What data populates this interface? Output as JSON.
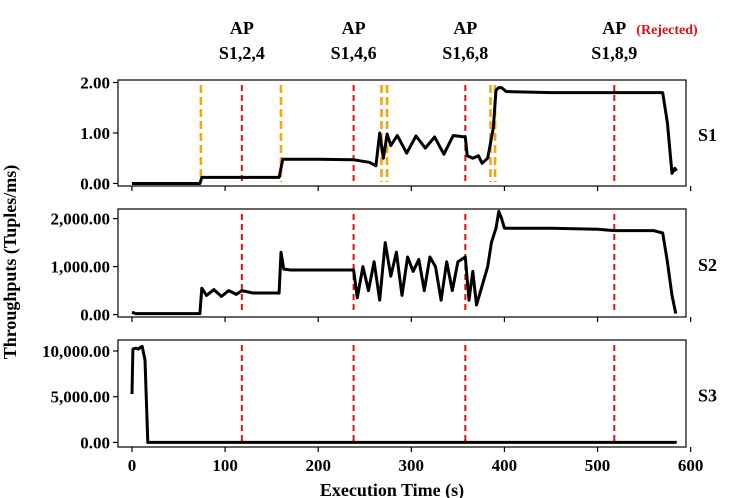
{
  "chart_data": {
    "type": "line",
    "title": "",
    "xlabel": "Execution Time (s)",
    "ylabel": "Throughputs (Tuples/ms)",
    "xlim": [
      -15,
      595
    ],
    "xticks": [
      0,
      100,
      200,
      300,
      400,
      500,
      600
    ],
    "colors": {
      "line": "#000000",
      "adaptation": "#dd1111",
      "split": "#f5a511",
      "rejected": "#dd1111"
    },
    "annotations": [
      {
        "top": "AP",
        "bottom": "S1,2,4",
        "x": 118,
        "rejected": false
      },
      {
        "top": "AP",
        "bottom": "S1,4,6",
        "x": 238,
        "rejected": false
      },
      {
        "top": "AP",
        "bottom": "S1,6,8",
        "x": 358,
        "rejected": false
      },
      {
        "top": "AP",
        "bottom": "S1,8,9",
        "x": 518,
        "rejected": true,
        "rejected_label": "(Rejected)"
      }
    ],
    "panels": [
      {
        "name": "S1",
        "ylim": [
          -0.05,
          2.05
        ],
        "yticks": [
          0,
          1,
          2
        ],
        "ytick_labels": [
          "0.00",
          "1.00",
          "2.00"
        ],
        "red_lines": [
          118,
          238,
          358,
          518
        ],
        "orange_lines": [
          74,
          160,
          268,
          274,
          385,
          390
        ],
        "x": [
          0,
          73,
          75,
          118,
          158,
          162,
          200,
          238,
          255,
          262,
          266,
          270,
          274,
          278,
          285,
          295,
          305,
          315,
          325,
          335,
          345,
          358,
          360,
          366,
          372,
          376,
          382,
          388,
          391,
          394,
          397,
          402,
          450,
          500,
          518,
          570,
          575,
          580,
          583,
          585
        ],
        "y": [
          0.0,
          0.0,
          0.12,
          0.12,
          0.12,
          0.48,
          0.48,
          0.47,
          0.42,
          0.35,
          1.0,
          0.5,
          0.98,
          0.75,
          0.95,
          0.6,
          0.94,
          0.7,
          0.92,
          0.58,
          0.95,
          0.92,
          0.55,
          0.5,
          0.55,
          0.4,
          0.5,
          1.1,
          1.85,
          1.9,
          1.9,
          1.82,
          1.8,
          1.8,
          1.8,
          1.8,
          1.2,
          0.2,
          0.3,
          0.25
        ]
      },
      {
        "name": "S2",
        "ylim": [
          -50,
          2200
        ],
        "yticks": [
          0,
          1000,
          2000
        ],
        "ytick_labels": [
          "0.00",
          "1,000.00",
          "2,000.00"
        ],
        "red_lines": [
          118,
          238,
          358,
          518
        ],
        "orange_lines": [],
        "x": [
          0,
          4,
          73,
          75,
          80,
          88,
          96,
          104,
          112,
          118,
          130,
          158,
          160,
          163,
          170,
          200,
          238,
          242,
          248,
          254,
          260,
          266,
          272,
          278,
          284,
          290,
          296,
          302,
          308,
          314,
          320,
          326,
          332,
          338,
          344,
          350,
          358,
          362,
          366,
          370,
          376,
          382,
          386,
          391,
          394,
          397,
          400,
          450,
          500,
          518,
          560,
          570,
          575,
          580,
          584
        ],
        "y": [
          50,
          20,
          20,
          550,
          400,
          520,
          380,
          500,
          420,
          500,
          450,
          450,
          1300,
          950,
          930,
          930,
          930,
          350,
          1000,
          500,
          1100,
          300,
          1500,
          800,
          1300,
          400,
          1200,
          900,
          1150,
          500,
          1200,
          1000,
          300,
          1100,
          500,
          1100,
          1200,
          300,
          900,
          200,
          600,
          1000,
          1500,
          1800,
          2150,
          2000,
          1800,
          1800,
          1780,
          1750,
          1750,
          1700,
          1100,
          400,
          20
        ]
      },
      {
        "name": "S3",
        "ylim": [
          -500,
          11200
        ],
        "yticks": [
          0,
          5000,
          10000
        ],
        "ytick_labels": [
          "0.00",
          "5,000.00",
          "10,000.00"
        ],
        "red_lines": [
          118,
          238,
          358,
          518
        ],
        "orange_lines": [],
        "x": [
          0,
          1,
          4,
          7,
          9,
          11,
          14,
          17,
          60,
          118,
          200,
          300,
          400,
          500,
          585
        ],
        "y": [
          5300,
          10200,
          10300,
          10200,
          10400,
          10500,
          9000,
          0,
          0,
          0,
          0,
          0,
          0,
          0,
          0
        ]
      }
    ]
  }
}
